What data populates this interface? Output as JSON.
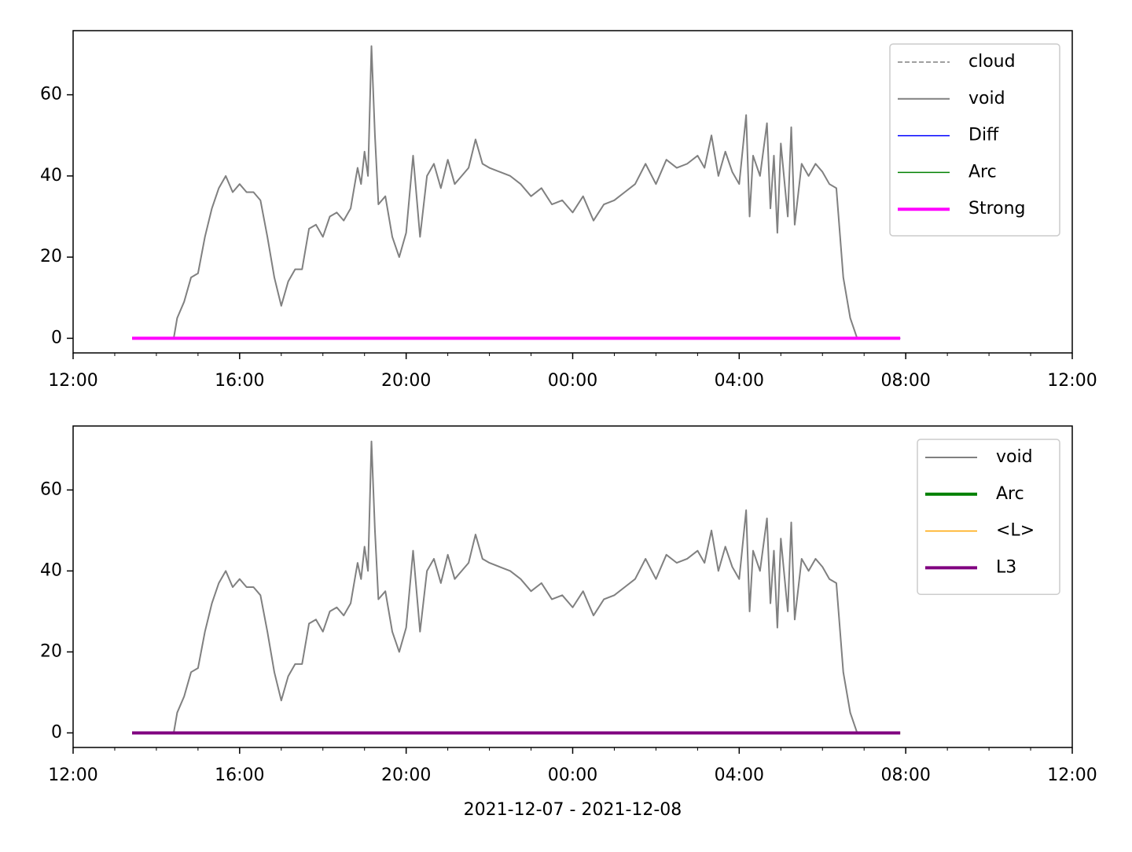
{
  "chart_data": [
    {
      "type": "line",
      "legend": "upper right",
      "ylim": [
        -3.6,
        75.8
      ],
      "yticks": [
        0,
        20,
        40,
        60
      ],
      "xlim": [
        "2021-12-07 12:00",
        "2021-12-08 12:00"
      ],
      "xticks": [
        {
          "value": "2021-12-07 12:00",
          "label": "12:00"
        },
        {
          "value": "2021-12-07 16:00",
          "label": "16:00"
        },
        {
          "value": "2021-12-07 20:00",
          "label": "20:00"
        },
        {
          "value": "2021-12-08 00:00",
          "label": "00:00"
        },
        {
          "value": "2021-12-08 04:00",
          "label": "04:00"
        },
        {
          "value": "2021-12-08 08:00",
          "label": "08:00"
        },
        {
          "value": "2021-12-08 12:00",
          "label": "12:00"
        }
      ],
      "series": [
        {
          "name": "cloud",
          "color": "#808080",
          "linestyle": "dashed",
          "linewidth": 1.5,
          "x": [
            "2021-12-07 13:25",
            "2021-12-08 07:52"
          ],
          "values": [
            0,
            0
          ]
        },
        {
          "name": "void",
          "color": "#808080",
          "linewidth": 2,
          "x": [
            "2021-12-07 14:25",
            "2021-12-07 14:30",
            "2021-12-07 14:40",
            "2021-12-07 14:50",
            "2021-12-07 15:00",
            "2021-12-07 15:10",
            "2021-12-07 15:20",
            "2021-12-07 15:30",
            "2021-12-07 15:40",
            "2021-12-07 15:50",
            "2021-12-07 16:00",
            "2021-12-07 16:10",
            "2021-12-07 16:20",
            "2021-12-07 16:30",
            "2021-12-07 16:40",
            "2021-12-07 16:50",
            "2021-12-07 17:00",
            "2021-12-07 17:10",
            "2021-12-07 17:20",
            "2021-12-07 17:30",
            "2021-12-07 17:40",
            "2021-12-07 17:50",
            "2021-12-07 18:00",
            "2021-12-07 18:10",
            "2021-12-07 18:20",
            "2021-12-07 18:30",
            "2021-12-07 18:40",
            "2021-12-07 18:50",
            "2021-12-07 18:55",
            "2021-12-07 19:00",
            "2021-12-07 19:05",
            "2021-12-07 19:10",
            "2021-12-07 19:15",
            "2021-12-07 19:20",
            "2021-12-07 19:30",
            "2021-12-07 19:40",
            "2021-12-07 19:50",
            "2021-12-07 20:00",
            "2021-12-07 20:10",
            "2021-12-07 20:20",
            "2021-12-07 20:30",
            "2021-12-07 20:40",
            "2021-12-07 20:50",
            "2021-12-07 21:00",
            "2021-12-07 21:10",
            "2021-12-07 21:20",
            "2021-12-07 21:30",
            "2021-12-07 21:40",
            "2021-12-07 21:50",
            "2021-12-07 22:00",
            "2021-12-07 22:15",
            "2021-12-07 22:30",
            "2021-12-07 22:45",
            "2021-12-07 23:00",
            "2021-12-07 23:15",
            "2021-12-07 23:30",
            "2021-12-07 23:45",
            "2021-12-08 00:00",
            "2021-12-08 00:15",
            "2021-12-08 00:30",
            "2021-12-08 00:45",
            "2021-12-08 01:00",
            "2021-12-08 01:15",
            "2021-12-08 01:30",
            "2021-12-08 01:45",
            "2021-12-08 02:00",
            "2021-12-08 02:15",
            "2021-12-08 02:30",
            "2021-12-08 02:45",
            "2021-12-08 03:00",
            "2021-12-08 03:10",
            "2021-12-08 03:20",
            "2021-12-08 03:30",
            "2021-12-08 03:40",
            "2021-12-08 03:50",
            "2021-12-08 04:00",
            "2021-12-08 04:10",
            "2021-12-08 04:15",
            "2021-12-08 04:20",
            "2021-12-08 04:30",
            "2021-12-08 04:40",
            "2021-12-08 04:45",
            "2021-12-08 04:50",
            "2021-12-08 04:55",
            "2021-12-08 05:00",
            "2021-12-08 05:10",
            "2021-12-08 05:15",
            "2021-12-08 05:20",
            "2021-12-08 05:30",
            "2021-12-08 05:40",
            "2021-12-08 05:50",
            "2021-12-08 06:00",
            "2021-12-08 06:10",
            "2021-12-08 06:20",
            "2021-12-08 06:30",
            "2021-12-08 06:40",
            "2021-12-08 06:50"
          ],
          "values": [
            0,
            5,
            9,
            15,
            16,
            25,
            32,
            37,
            40,
            36,
            38,
            36,
            36,
            34,
            25,
            15,
            8,
            14,
            17,
            17,
            27,
            28,
            25,
            30,
            31,
            29,
            32,
            42,
            38,
            46,
            40,
            72,
            50,
            33,
            35,
            25,
            20,
            26,
            45,
            25,
            40,
            43,
            37,
            44,
            38,
            40,
            42,
            49,
            43,
            42,
            41,
            40,
            38,
            35,
            37,
            33,
            34,
            31,
            35,
            29,
            33,
            34,
            36,
            38,
            43,
            38,
            44,
            42,
            43,
            45,
            42,
            50,
            40,
            46,
            41,
            38,
            55,
            30,
            45,
            40,
            53,
            32,
            45,
            26,
            48,
            30,
            52,
            28,
            43,
            40,
            43,
            41,
            38,
            37,
            15,
            5,
            0
          ]
        },
        {
          "name": "Diff",
          "color": "#0000ff",
          "linewidth": 1.5,
          "x": [
            "2021-12-07 13:25",
            "2021-12-08 07:52"
          ],
          "values": [
            0,
            0
          ]
        },
        {
          "name": "Arc",
          "color": "#008000",
          "linewidth": 1.5,
          "x": [
            "2021-12-07 13:25",
            "2021-12-08 07:52"
          ],
          "values": [
            0,
            0
          ]
        },
        {
          "name": "Strong",
          "color": "#ff00ff",
          "linewidth": 4,
          "x": [
            "2021-12-07 13:25",
            "2021-12-08 07:52"
          ],
          "values": [
            0,
            0
          ]
        }
      ]
    },
    {
      "type": "line",
      "legend": "upper right",
      "ylim": [
        -3.6,
        75.8
      ],
      "yticks": [
        0,
        20,
        40,
        60
      ],
      "xlim": [
        "2021-12-07 12:00",
        "2021-12-08 12:00"
      ],
      "xlabel": "2021-12-07 - 2021-12-08",
      "xticks": [
        {
          "value": "2021-12-07 12:00",
          "label": "12:00"
        },
        {
          "value": "2021-12-07 16:00",
          "label": "16:00"
        },
        {
          "value": "2021-12-07 20:00",
          "label": "20:00"
        },
        {
          "value": "2021-12-08 00:00",
          "label": "00:00"
        },
        {
          "value": "2021-12-08 04:00",
          "label": "04:00"
        },
        {
          "value": "2021-12-08 08:00",
          "label": "08:00"
        },
        {
          "value": "2021-12-08 12:00",
          "label": "12:00"
        }
      ],
      "series": [
        {
          "name": "void",
          "color": "#808080",
          "linewidth": 2,
          "x": [
            "2021-12-07 14:25",
            "2021-12-07 14:30",
            "2021-12-07 14:40",
            "2021-12-07 14:50",
            "2021-12-07 15:00",
            "2021-12-07 15:10",
            "2021-12-07 15:20",
            "2021-12-07 15:30",
            "2021-12-07 15:40",
            "2021-12-07 15:50",
            "2021-12-07 16:00",
            "2021-12-07 16:10",
            "2021-12-07 16:20",
            "2021-12-07 16:30",
            "2021-12-07 16:40",
            "2021-12-07 16:50",
            "2021-12-07 17:00",
            "2021-12-07 17:10",
            "2021-12-07 17:20",
            "2021-12-07 17:30",
            "2021-12-07 17:40",
            "2021-12-07 17:50",
            "2021-12-07 18:00",
            "2021-12-07 18:10",
            "2021-12-07 18:20",
            "2021-12-07 18:30",
            "2021-12-07 18:40",
            "2021-12-07 18:50",
            "2021-12-07 18:55",
            "2021-12-07 19:00",
            "2021-12-07 19:05",
            "2021-12-07 19:10",
            "2021-12-07 19:15",
            "2021-12-07 19:20",
            "2021-12-07 19:30",
            "2021-12-07 19:40",
            "2021-12-07 19:50",
            "2021-12-07 20:00",
            "2021-12-07 20:10",
            "2021-12-07 20:20",
            "2021-12-07 20:30",
            "2021-12-07 20:40",
            "2021-12-07 20:50",
            "2021-12-07 21:00",
            "2021-12-07 21:10",
            "2021-12-07 21:20",
            "2021-12-07 21:30",
            "2021-12-07 21:40",
            "2021-12-07 21:50",
            "2021-12-07 22:00",
            "2021-12-07 22:15",
            "2021-12-07 22:30",
            "2021-12-07 22:45",
            "2021-12-07 23:00",
            "2021-12-07 23:15",
            "2021-12-07 23:30",
            "2021-12-07 23:45",
            "2021-12-08 00:00",
            "2021-12-08 00:15",
            "2021-12-08 00:30",
            "2021-12-08 00:45",
            "2021-12-08 01:00",
            "2021-12-08 01:15",
            "2021-12-08 01:30",
            "2021-12-08 01:45",
            "2021-12-08 02:00",
            "2021-12-08 02:15",
            "2021-12-08 02:30",
            "2021-12-08 02:45",
            "2021-12-08 03:00",
            "2021-12-08 03:10",
            "2021-12-08 03:20",
            "2021-12-08 03:30",
            "2021-12-08 03:40",
            "2021-12-08 03:50",
            "2021-12-08 04:00",
            "2021-12-08 04:10",
            "2021-12-08 04:15",
            "2021-12-08 04:20",
            "2021-12-08 04:30",
            "2021-12-08 04:40",
            "2021-12-08 04:45",
            "2021-12-08 04:50",
            "2021-12-08 04:55",
            "2021-12-08 05:00",
            "2021-12-08 05:10",
            "2021-12-08 05:15",
            "2021-12-08 05:20",
            "2021-12-08 05:30",
            "2021-12-08 05:40",
            "2021-12-08 05:50",
            "2021-12-08 06:00",
            "2021-12-08 06:10",
            "2021-12-08 06:20",
            "2021-12-08 06:30",
            "2021-12-08 06:40",
            "2021-12-08 06:50"
          ],
          "values": [
            0,
            5,
            9,
            15,
            16,
            25,
            32,
            37,
            40,
            36,
            38,
            36,
            36,
            34,
            25,
            15,
            8,
            14,
            17,
            17,
            27,
            28,
            25,
            30,
            31,
            29,
            32,
            42,
            38,
            46,
            40,
            72,
            50,
            33,
            35,
            25,
            20,
            26,
            45,
            25,
            40,
            43,
            37,
            44,
            38,
            40,
            42,
            49,
            43,
            42,
            41,
            40,
            38,
            35,
            37,
            33,
            34,
            31,
            35,
            29,
            33,
            34,
            36,
            38,
            43,
            38,
            44,
            42,
            43,
            45,
            42,
            50,
            40,
            46,
            41,
            38,
            55,
            30,
            45,
            40,
            53,
            32,
            45,
            26,
            48,
            30,
            52,
            28,
            43,
            40,
            43,
            41,
            38,
            37,
            15,
            5,
            0
          ]
        },
        {
          "name": "Arc",
          "color": "#008000",
          "linewidth": 4,
          "x": [
            "2021-12-07 13:25",
            "2021-12-08 07:52"
          ],
          "values": [
            0,
            0
          ]
        },
        {
          "name": "<L>",
          "color": "#ffa500",
          "linewidth": 1.5,
          "x": [
            "2021-12-07 13:25",
            "2021-12-08 07:52"
          ],
          "values": [
            0,
            0
          ]
        },
        {
          "name": "L3",
          "color": "#800080",
          "linewidth": 4,
          "x": [
            "2021-12-07 13:25",
            "2021-12-08 07:52"
          ],
          "values": [
            0,
            0
          ]
        }
      ]
    }
  ]
}
